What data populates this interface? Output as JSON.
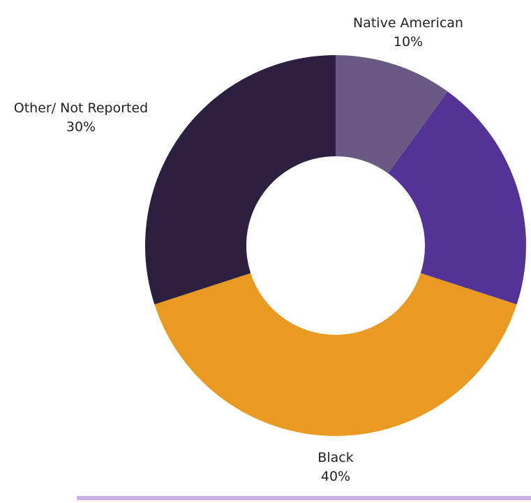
{
  "chart_data": {
    "type": "pie",
    "variant": "donut",
    "slices": [
      {
        "label": "Native American",
        "value": 10,
        "value_label": "10%",
        "color": "#685a82",
        "label_shown": true
      },
      {
        "label": "",
        "value": 20,
        "value_label": "",
        "color": "#543396",
        "label_shown": false
      },
      {
        "label": "Black",
        "value": 40,
        "value_label": "40%",
        "color": "#e99a22",
        "label_shown": true
      },
      {
        "label": "Other/ Not Reported",
        "value": 30,
        "value_label": "30%",
        "color": "#2d1f3f",
        "label_shown": true
      }
    ],
    "start": "12 o'clock",
    "direction": "clockwise",
    "legend": "none"
  },
  "colors": {
    "background": "#ffffff",
    "hole": "#ffffff",
    "label_text": "#222222",
    "bottom_rule": "#c9b3e6"
  }
}
